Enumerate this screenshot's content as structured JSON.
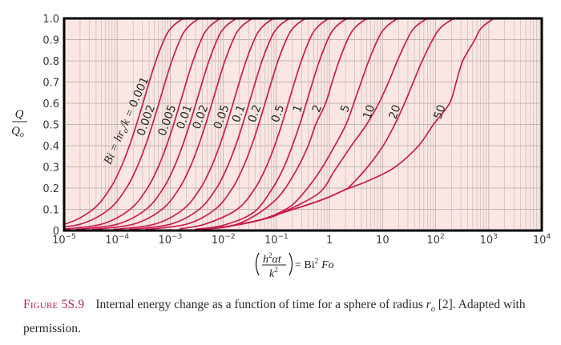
{
  "chart_data": {
    "type": "line",
    "x_scale": "log",
    "xlim": [
      1e-05,
      10000
    ],
    "ylim": [
      0,
      1.0
    ],
    "grid": true,
    "colors": {
      "curve": "#c91c4f",
      "background": "#fae7e3",
      "grid": "#c4b4b1",
      "frame": "#000000"
    },
    "y_ticks": [
      "0",
      "0.1",
      "0.2",
      "0.3",
      "0.4",
      "0.5",
      "0.6",
      "0.7",
      "0.8",
      "0.9",
      "1.0"
    ],
    "x_ticks": [
      {
        "value": 1e-05,
        "base": "10",
        "exp": "−5"
      },
      {
        "value": 0.0001,
        "base": "10",
        "exp": "−4"
      },
      {
        "value": 0.001,
        "base": "10",
        "exp": "−3"
      },
      {
        "value": 0.01,
        "base": "10",
        "exp": "−2"
      },
      {
        "value": 0.1,
        "base": "10",
        "exp": "−1"
      },
      {
        "value": 1,
        "base": "1",
        "exp": ""
      },
      {
        "value": 10,
        "base": "10",
        "exp": ""
      },
      {
        "value": 100,
        "base": "10",
        "exp": "2"
      },
      {
        "value": 1000,
        "base": "10",
        "exp": "3"
      },
      {
        "value": 10000,
        "base": "10",
        "exp": "4"
      }
    ],
    "ylabel": {
      "num": "Q",
      "den": "Q",
      "den_sub": "o"
    },
    "xlabel": {
      "num_h": "h",
      "num_sup": "2",
      "num_rest": "αt",
      "den": "k",
      "den_sup": "2",
      "eq": "= Bi",
      "eq_sup": "2",
      "eq_rest": "Fo"
    },
    "bi_label": {
      "pre": "Bi = hr",
      "sub": "o",
      "post": "/k = "
    },
    "series": [
      {
        "name": "0.001",
        "x": [
          1.67e-06,
          1.015e-05,
          3.51e-05,
          7.44e-05,
          0.0001189,
          0.0001703,
          0.000231,
          0.0003054,
          0.0004013,
          0.0005365,
          0.0007675,
          0.0009986,
          0.001535,
          0.00207
        ],
        "y": [
          0.005,
          0.03,
          0.1,
          0.2,
          0.3,
          0.4,
          0.5,
          0.6,
          0.7,
          0.8,
          0.9,
          0.95,
          0.99,
          0.998
        ]
      },
      {
        "name": "0.002",
        "x": [
          3.34e-06,
          2.03e-05,
          7.02e-05,
          0.0001488,
          0.0002378,
          0.0003406,
          0.000462,
          0.0006108,
          0.0008026,
          0.001073,
          0.001535,
          0.001997,
          0.00307,
          0.00414
        ],
        "y": [
          0.005,
          0.03,
          0.1,
          0.2,
          0.3,
          0.4,
          0.5,
          0.6,
          0.7,
          0.8,
          0.9,
          0.95,
          0.99,
          0.998
        ]
      },
      {
        "name": "0.005",
        "x": [
          8.35e-06,
          5.075e-05,
          0.0001755,
          0.000372,
          0.0005945,
          0.0008515,
          0.001155,
          0.001527,
          0.002007,
          0.002683,
          0.003838,
          0.004993,
          0.007675,
          0.01035
        ],
        "y": [
          0.005,
          0.03,
          0.1,
          0.2,
          0.3,
          0.4,
          0.5,
          0.6,
          0.7,
          0.8,
          0.9,
          0.95,
          0.99,
          0.998
        ]
      },
      {
        "name": "0.01",
        "x": [
          1.67e-05,
          0.0001015,
          0.000351,
          0.000744,
          0.001189,
          0.001703,
          0.00231,
          0.003054,
          0.004013,
          0.005365,
          0.007675,
          0.009986,
          0.01535,
          0.0207
        ],
        "y": [
          0.005,
          0.03,
          0.1,
          0.2,
          0.3,
          0.4,
          0.5,
          0.6,
          0.7,
          0.8,
          0.9,
          0.95,
          0.99,
          0.998
        ]
      },
      {
        "name": "0.02",
        "x": [
          3.34e-05,
          0.000203,
          0.000702,
          0.001488,
          0.002378,
          0.003406,
          0.00462,
          0.006108,
          0.008026,
          0.01073,
          0.01535,
          0.01997,
          0.0307,
          0.0414
        ],
        "y": [
          0.005,
          0.03,
          0.1,
          0.2,
          0.3,
          0.4,
          0.5,
          0.6,
          0.7,
          0.8,
          0.9,
          0.95,
          0.99,
          0.998
        ]
      },
      {
        "name": "0.05",
        "x": [
          8.35e-05,
          0.0005075,
          0.001755,
          0.00372,
          0.005945,
          0.008515,
          0.01155,
          0.01527,
          0.02007,
          0.02683,
          0.03838,
          0.04993,
          0.07675,
          0.1035
        ],
        "y": [
          0.005,
          0.03,
          0.1,
          0.2,
          0.3,
          0.4,
          0.5,
          0.6,
          0.7,
          0.8,
          0.9,
          0.95,
          0.99,
          0.998
        ]
      },
      {
        "name": "0.1",
        "x": [
          0.000167,
          0.001015,
          0.00351,
          0.00744,
          0.01189,
          0.01703,
          0.0231,
          0.03054,
          0.04013,
          0.05365,
          0.07675,
          0.09986,
          0.1535,
          0.207
        ],
        "y": [
          0.005,
          0.03,
          0.1,
          0.2,
          0.3,
          0.4,
          0.5,
          0.6,
          0.7,
          0.8,
          0.9,
          0.95,
          0.99,
          0.998
        ]
      },
      {
        "name": "0.2",
        "x": [
          0.000334,
          0.00203,
          0.00702,
          0.01488,
          0.02378,
          0.03406,
          0.0462,
          0.06108,
          0.08026,
          0.1073,
          0.1535,
          0.1997,
          0.307,
          0.414
        ],
        "y": [
          0.005,
          0.03,
          0.1,
          0.2,
          0.3,
          0.4,
          0.5,
          0.6,
          0.7,
          0.8,
          0.9,
          0.95,
          0.99,
          0.998
        ]
      },
      {
        "name": "0.5",
        "x": [
          0.0015,
          0.0045,
          0.0182,
          0.0398,
          0.0644,
          0.0928,
          0.126,
          0.167,
          0.22,
          0.295,
          0.422,
          0.55,
          0.846,
          1.14
        ],
        "y": [
          0.008,
          0.03,
          0.1,
          0.2,
          0.3,
          0.4,
          0.5,
          0.6,
          0.7,
          0.8,
          0.9,
          0.95,
          0.99,
          0.998
        ]
      },
      {
        "name": "1",
        "x": [
          0.003,
          0.01,
          0.037,
          0.085,
          0.139,
          0.2,
          0.275,
          0.366,
          0.482,
          0.647,
          0.927,
          1.21,
          1.86,
          2.5
        ],
        "y": [
          0.006,
          0.025,
          0.085,
          0.2,
          0.3,
          0.4,
          0.5,
          0.6,
          0.7,
          0.8,
          0.9,
          0.95,
          0.99,
          0.998
        ]
      },
      {
        "name": "2",
        "x": [
          0.0037,
          0.0133,
          0.038,
          0.107,
          0.22,
          0.39,
          0.55,
          0.845,
          1.124,
          1.518,
          2.19,
          2.87,
          4.43,
          6.0
        ],
        "y": [
          0.006,
          0.02,
          0.068,
          0.156,
          0.27,
          0.395,
          0.5,
          0.6,
          0.7,
          0.8,
          0.9,
          0.95,
          0.99,
          0.998
        ]
      },
      {
        "name": "5",
        "x": [
          0.0037,
          0.0117,
          0.05,
          0.15,
          0.275,
          0.62,
          1.23,
          2.05,
          2.87,
          3.96,
          5.49,
          8.1,
          10.7,
          16.8,
          22
        ],
        "y": [
          0.005,
          0.019,
          0.05,
          0.1,
          0.156,
          0.27,
          0.395,
          0.5,
          0.6,
          0.7,
          0.8,
          0.9,
          0.95,
          0.99,
          0.998
        ]
      },
      {
        "name": "10",
        "x": [
          0.0037,
          0.0117,
          0.05,
          0.12,
          0.62,
          1.23,
          2.51,
          5.0,
          8.5,
          13,
          19,
          29,
          38,
          60,
          80
        ],
        "y": [
          0.005,
          0.019,
          0.05,
          0.081,
          0.175,
          0.28,
          0.395,
          0.5,
          0.6,
          0.7,
          0.8,
          0.9,
          0.95,
          0.99,
          0.998
        ]
      },
      {
        "name": "20",
        "x": [
          0.0037,
          0.0117,
          0.05,
          0.12,
          0.69,
          1.97,
          2.5,
          5.0,
          10,
          17,
          26,
          38,
          56,
          88,
          118,
          190,
          250
        ],
        "y": [
          0.005,
          0.019,
          0.05,
          0.081,
          0.143,
          0.193,
          0.212,
          0.294,
          0.395,
          0.5,
          0.6,
          0.7,
          0.8,
          0.9,
          0.95,
          0.99,
          0.998
        ]
      },
      {
        "name": "50",
        "x": [
          0.0037,
          0.0117,
          0.05,
          0.12,
          0.69,
          2.0,
          5.0,
          16,
          46,
          91,
          183,
          245,
          325,
          550,
          700,
          1100,
          1400
        ],
        "y": [
          0.005,
          0.019,
          0.05,
          0.081,
          0.143,
          0.193,
          0.231,
          0.294,
          0.395,
          0.5,
          0.6,
          0.7,
          0.8,
          0.9,
          0.95,
          0.99,
          0.998
        ]
      }
    ]
  },
  "caption": {
    "figure_number": "Figure 5S.9",
    "text_before": "Internal energy change as a function of time for a sphere of radius ",
    "var": "r",
    "var_sub": "o",
    "text_after": " [2]. Adapted with permission."
  }
}
